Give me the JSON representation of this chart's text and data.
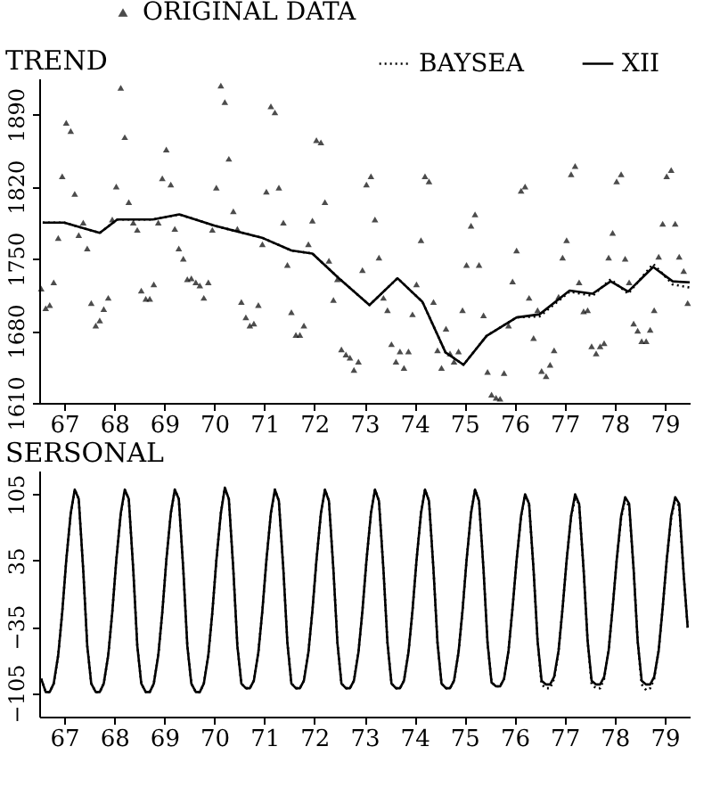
{
  "chart_data": [
    {
      "type": "line",
      "title": "TREND",
      "legend": "top",
      "xlim": [
        66.5,
        79.5
      ],
      "ylim": [
        1610,
        1925
      ],
      "yticks": [
        1610,
        1680,
        1750,
        1820,
        1890
      ],
      "xticks": [
        67,
        68,
        69,
        70,
        71,
        72,
        73,
        74,
        75,
        76,
        77,
        78,
        79
      ],
      "x": [
        66.54,
        66.63,
        66.71,
        66.79,
        66.88,
        66.96,
        67.04,
        67.13,
        67.21,
        67.29,
        67.38,
        67.46,
        67.54,
        67.63,
        67.71,
        67.79,
        67.88,
        67.96,
        68.04,
        68.13,
        68.21,
        68.29,
        68.38,
        68.46,
        68.54,
        68.63,
        68.71,
        68.79,
        68.88,
        68.96,
        69.04,
        69.13,
        69.21,
        69.29,
        69.38,
        69.46,
        69.54,
        69.63,
        69.71,
        69.79,
        69.88,
        69.96,
        70.04,
        70.13,
        70.21,
        70.29,
        70.38,
        70.46,
        70.54,
        70.63,
        70.71,
        70.79,
        70.88,
        70.96,
        71.04,
        71.13,
        71.21,
        71.29,
        71.38,
        71.46,
        71.54,
        71.63,
        71.71,
        71.79,
        71.88,
        71.96,
        72.04,
        72.13,
        72.21,
        72.29,
        72.38,
        72.46,
        72.54,
        72.63,
        72.71,
        72.79,
        72.88,
        72.96,
        73.04,
        73.13,
        73.21,
        73.29,
        73.38,
        73.46,
        73.54,
        73.63,
        73.71,
        73.79,
        73.88,
        73.96,
        74.04,
        74.13,
        74.21,
        74.29,
        74.38,
        74.46,
        74.54,
        74.63,
        74.71,
        74.79,
        74.88,
        74.96,
        75.04,
        75.13,
        75.21,
        75.29,
        75.38,
        75.46,
        75.54,
        75.63,
        75.71,
        75.79,
        75.88,
        75.96,
        76.04,
        76.13,
        76.21,
        76.29,
        76.38,
        76.46,
        76.54,
        76.63,
        76.71,
        76.79,
        76.88,
        76.96,
        77.04,
        77.13,
        77.21,
        77.29,
        77.38,
        77.46,
        77.54,
        77.63,
        77.71,
        77.79,
        77.88,
        77.96,
        78.04,
        78.13,
        78.21,
        78.29,
        78.38,
        78.46,
        78.54,
        78.63,
        78.71,
        78.79,
        78.88,
        78.96,
        79.04,
        79.13,
        79.21,
        79.29,
        79.38,
        79.46
      ],
      "series": [
        {
          "name": "ORIGINAL DATA",
          "type": "scatter",
          "marker": "triangle",
          "color": "#000000",
          "values": [
            1721,
            1702,
            1705,
            1727,
            1770,
            1830,
            1882,
            1874,
            1813,
            1773,
            1785,
            1760,
            1707,
            1685,
            1690,
            1701,
            1712,
            1788,
            1820,
            1916,
            1868,
            1805,
            1785,
            1778,
            1719,
            1711,
            1711,
            1725,
            1785,
            1828,
            1856,
            1822,
            1779,
            1760,
            1750,
            1730,
            1731,
            1727,
            1724,
            1712,
            1727,
            1778,
            1819,
            1918,
            1902,
            1847,
            1796,
            1779,
            1708,
            1693,
            1685,
            1687,
            1705,
            1764,
            1815,
            1898,
            1892,
            1819,
            1785,
            1744,
            1698,
            1676,
            1676,
            1685,
            1764,
            1787,
            1865,
            1863,
            1805,
            1748,
            1710,
            1730,
            1662,
            1657,
            1654,
            1642,
            1650,
            1739,
            1822,
            1830,
            1788,
            1751,
            1712,
            1700,
            1667,
            1650,
            1660,
            1644,
            1660,
            1696,
            1725,
            1768,
            1830,
            1825,
            1708,
            1661,
            1644,
            1682,
            1658,
            1650,
            1660,
            1700,
            1744,
            1782,
            1793,
            1744,
            1695,
            1640,
            1618,
            1615,
            1614,
            1639,
            1685,
            1728,
            1758,
            1816,
            1820,
            1712,
            1673,
            1700,
            1641,
            1636,
            1647,
            1661,
            1713,
            1751,
            1768,
            1832,
            1840,
            1727,
            1699,
            1700,
            1665,
            1658,
            1665,
            1668,
            1751,
            1775,
            1825,
            1832,
            1750,
            1727,
            1687,
            1680,
            1670,
            1670,
            1681,
            1700,
            1752,
            1784,
            1830,
            1836,
            1784,
            1752,
            1738,
            1707
          ]
        },
        {
          "name": "BAYSEA",
          "line_style": "dotted",
          "color": "#000000",
          "x": [
            66.57,
            67.0,
            67.71,
            68.06,
            68.77,
            69.3,
            70.01,
            70.97,
            71.54,
            71.96,
            72.49,
            73.1,
            73.66,
            74.16,
            74.62,
            74.98,
            75.44,
            76.04,
            76.5,
            77.1,
            77.56,
            77.92,
            78.27,
            78.77,
            79.16,
            79.5
          ],
          "values": [
            1785,
            1785,
            1775,
            1788,
            1788,
            1793,
            1782,
            1770,
            1758,
            1755,
            1731,
            1705,
            1731,
            1708,
            1659,
            1647,
            1675,
            1693,
            1694,
            1718,
            1714,
            1730,
            1716,
            1745,
            1725,
            1722
          ]
        },
        {
          "name": "XII",
          "line_style": "solid",
          "color": "#000000",
          "x": [
            66.57,
            67.0,
            67.71,
            68.06,
            68.77,
            69.3,
            70.01,
            70.97,
            71.54,
            71.96,
            72.49,
            73.1,
            73.66,
            74.16,
            74.62,
            74.98,
            75.44,
            76.04,
            76.5,
            77.1,
            77.56,
            77.92,
            78.27,
            78.77,
            79.16,
            79.5
          ],
          "values": [
            1785,
            1785,
            1775,
            1788,
            1788,
            1793,
            1782,
            1770,
            1758,
            1755,
            1731,
            1705,
            1731,
            1708,
            1659,
            1647,
            1675,
            1693,
            1696,
            1719,
            1716,
            1728,
            1718,
            1742,
            1728,
            1727
          ]
        }
      ]
    },
    {
      "type": "line",
      "title": "SERSONAL",
      "xlim": [
        66.5,
        79.5
      ],
      "ylim": [
        -130,
        130
      ],
      "yticks": [
        -105,
        -35,
        35,
        105
      ],
      "xticks": [
        67,
        68,
        69,
        70,
        71,
        72,
        73,
        74,
        75,
        76,
        77,
        78,
        79
      ],
      "x": [
        66.54,
        66.63,
        66.71,
        66.79,
        66.88,
        66.96,
        67.04,
        67.13,
        67.21,
        67.29,
        67.38,
        67.46,
        67.54,
        67.63,
        67.71,
        67.79,
        67.88,
        67.96,
        68.04,
        68.13,
        68.21,
        68.29,
        68.38,
        68.46,
        68.54,
        68.63,
        68.71,
        68.79,
        68.88,
        68.96,
        69.04,
        69.13,
        69.21,
        69.29,
        69.38,
        69.46,
        69.54,
        69.63,
        69.71,
        69.79,
        69.88,
        69.96,
        70.04,
        70.13,
        70.21,
        70.29,
        70.38,
        70.46,
        70.54,
        70.63,
        70.71,
        70.79,
        70.88,
        70.96,
        71.04,
        71.13,
        71.21,
        71.29,
        71.38,
        71.46,
        71.54,
        71.63,
        71.71,
        71.79,
        71.88,
        71.96,
        72.04,
        72.13,
        72.21,
        72.29,
        72.38,
        72.46,
        72.54,
        72.63,
        72.71,
        72.79,
        72.88,
        72.96,
        73.04,
        73.13,
        73.21,
        73.29,
        73.38,
        73.46,
        73.54,
        73.63,
        73.71,
        73.79,
        73.88,
        73.96,
        74.04,
        74.13,
        74.21,
        74.29,
        74.38,
        74.46,
        74.54,
        74.63,
        74.71,
        74.79,
        74.88,
        74.96,
        75.04,
        75.13,
        75.21,
        75.29,
        75.38,
        75.46,
        75.54,
        75.63,
        75.71,
        75.79,
        75.88,
        75.96,
        76.04,
        76.13,
        76.21,
        76.29,
        76.38,
        76.46,
        76.54,
        76.63,
        76.71,
        76.79,
        76.88,
        76.96,
        77.04,
        77.13,
        77.21,
        77.29,
        77.38,
        77.46,
        77.54,
        77.63,
        77.71,
        77.79,
        77.88,
        77.96,
        78.04,
        78.13,
        78.21,
        78.29,
        78.38,
        78.46,
        78.54,
        78.63,
        78.71,
        78.79,
        78.88,
        78.96,
        79.04,
        79.13,
        79.21,
        79.29,
        79.38,
        79.46
      ],
      "series": [
        {
          "line_style": "dotted",
          "color": "#000000",
          "values": [
            -90,
            -104,
            -104,
            -95,
            -65,
            -20,
            35,
            85,
            110,
            100,
            25,
            -55,
            -95,
            -104,
            -104,
            -95,
            -65,
            -20,
            35,
            85,
            110,
            100,
            25,
            -55,
            -95,
            -104,
            -104,
            -95,
            -65,
            -20,
            35,
            85,
            110,
            100,
            25,
            -55,
            -95,
            -104,
            -104,
            -95,
            -65,
            -20,
            35,
            85,
            112,
            100,
            25,
            -55,
            -95,
            -100,
            -100,
            -92,
            -62,
            -18,
            35,
            85,
            110,
            98,
            25,
            -52,
            -95,
            -100,
            -100,
            -92,
            -62,
            -18,
            35,
            85,
            110,
            98,
            25,
            -52,
            -95,
            -100,
            -100,
            -92,
            -62,
            -18,
            35,
            85,
            110,
            98,
            25,
            -52,
            -95,
            -100,
            -100,
            -92,
            -62,
            -18,
            35,
            85,
            110,
            98,
            25,
            -52,
            -95,
            -100,
            -100,
            -92,
            -62,
            -18,
            35,
            85,
            110,
            98,
            25,
            -52,
            -94,
            -98,
            -98,
            -90,
            -60,
            -15,
            35,
            82,
            105,
            95,
            25,
            -50,
            -96,
            -100,
            -100,
            -90,
            -60,
            -15,
            35,
            82,
            100,
            95,
            25,
            -50,
            -96,
            -100,
            -100,
            -90,
            -60,
            -15,
            35,
            80,
            100,
            92,
            25,
            -50,
            -96,
            -102,
            -100,
            -90,
            -60,
            -15,
            35,
            80,
            100,
            92,
            20,
            -36
          ]
        },
        {
          "line_style": "solid",
          "color": "#000000",
          "values": [
            -90,
            -104,
            -104,
            -95,
            -65,
            -20,
            35,
            85,
            110,
            100,
            25,
            -55,
            -95,
            -104,
            -104,
            -95,
            -65,
            -20,
            35,
            85,
            110,
            100,
            25,
            -55,
            -95,
            -104,
            -104,
            -95,
            -65,
            -20,
            35,
            85,
            110,
            100,
            25,
            -55,
            -95,
            -104,
            -104,
            -95,
            -65,
            -20,
            35,
            85,
            112,
            100,
            25,
            -55,
            -95,
            -100,
            -100,
            -92,
            -62,
            -18,
            35,
            85,
            110,
            98,
            25,
            -52,
            -95,
            -100,
            -100,
            -92,
            -62,
            -18,
            35,
            85,
            110,
            98,
            25,
            -52,
            -95,
            -100,
            -100,
            -92,
            -62,
            -18,
            35,
            85,
            110,
            98,
            25,
            -52,
            -95,
            -100,
            -100,
            -92,
            -62,
            -18,
            35,
            85,
            110,
            98,
            25,
            -52,
            -95,
            -100,
            -100,
            -92,
            -62,
            -18,
            35,
            85,
            110,
            98,
            25,
            -52,
            -94,
            -98,
            -98,
            -90,
            -60,
            -15,
            35,
            82,
            105,
            95,
            25,
            -50,
            -92,
            -96,
            -96,
            -88,
            -60,
            -15,
            35,
            82,
            105,
            95,
            25,
            -50,
            -92,
            -96,
            -96,
            -88,
            -60,
            -15,
            35,
            82,
            102,
            95,
            25,
            -50,
            -92,
            -96,
            -96,
            -88,
            -60,
            -15,
            35,
            82,
            102,
            95,
            20,
            -36
          ]
        }
      ]
    }
  ]
}
